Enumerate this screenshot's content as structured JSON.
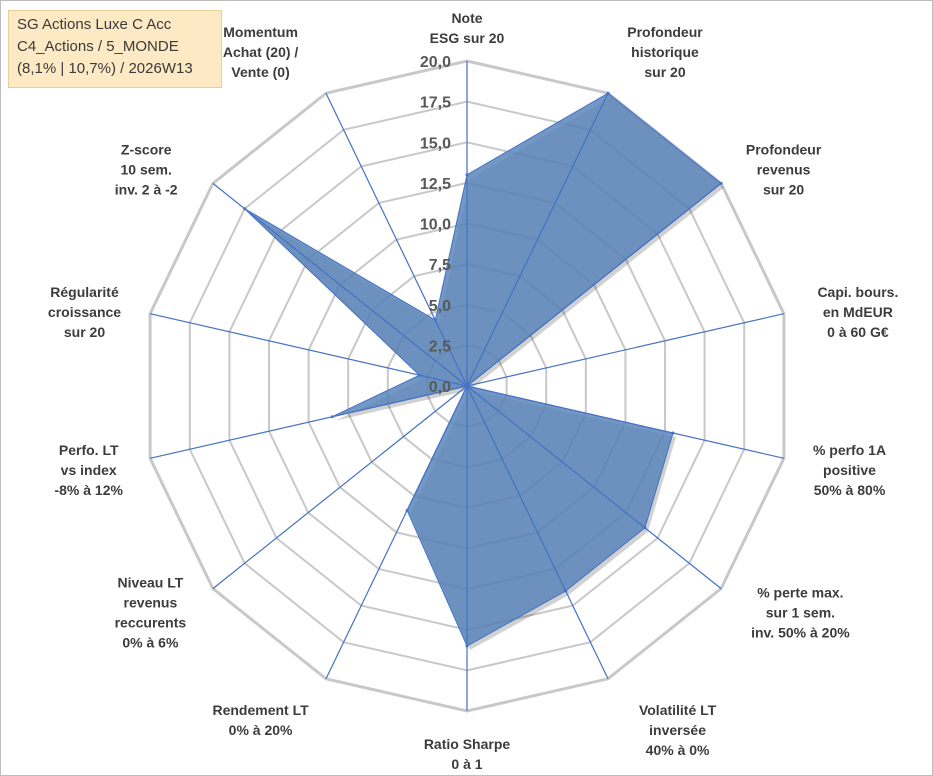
{
  "title_box": {
    "line1": "SG Actions Luxe C Acc",
    "line2": "C4_Actions / 5_MONDE",
    "line3": "(8,1% | 10,7%) / 2026W13"
  },
  "chart_data": {
    "type": "radar",
    "rmin": 0,
    "rmax": 20,
    "ticks": [
      "0,0",
      "2,5",
      "5,0",
      "7,5",
      "10,0",
      "12,5",
      "15,0",
      "17,5",
      "20,0"
    ],
    "gridlines": true,
    "categories": [
      [
        "Note",
        "ESG sur 20"
      ],
      [
        "Profondeur",
        "historique",
        "sur 20"
      ],
      [
        "Profondeur",
        "revenus",
        "sur 20"
      ],
      [
        "Capi. bours.",
        "en MdEUR",
        "0 à 60 G€"
      ],
      [
        "% perfo 1A",
        "positive",
        "50% à 80%"
      ],
      [
        "% perte max.",
        "sur 1 sem.",
        "inv. 50% à 20%"
      ],
      [
        "Volatilité LT",
        "inversée",
        "40% à 0%"
      ],
      [
        "Ratio Sharpe",
        "0 à 1"
      ],
      [
        "Rendement LT",
        "0% à 20%"
      ],
      [
        "Niveau LT",
        "revenus",
        "reccurents",
        "0% à 6%"
      ],
      [
        "Perfo. LT",
        "vs index",
        "-8% à 12%"
      ],
      [
        "Régularité",
        "croissance",
        "sur 20"
      ],
      [
        "Z-score",
        "10 sem.",
        "inv. 2 à -2"
      ],
      [
        "Momentum",
        "Achat (20) /",
        "Vente (0)"
      ]
    ],
    "series": [
      {
        "name": "SG Actions Luxe C Acc",
        "values": [
          13.0,
          20.0,
          20.0,
          0.0,
          13.0,
          14.0,
          14.0,
          16.0,
          8.5,
          0.0,
          8.5,
          3.0,
          17.5,
          4.5
        ]
      }
    ],
    "colors": {
      "fill": "#5b86bb",
      "stroke": "#4472c4",
      "grid": "#c8c8c8",
      "spoke": "#4472c4"
    }
  }
}
